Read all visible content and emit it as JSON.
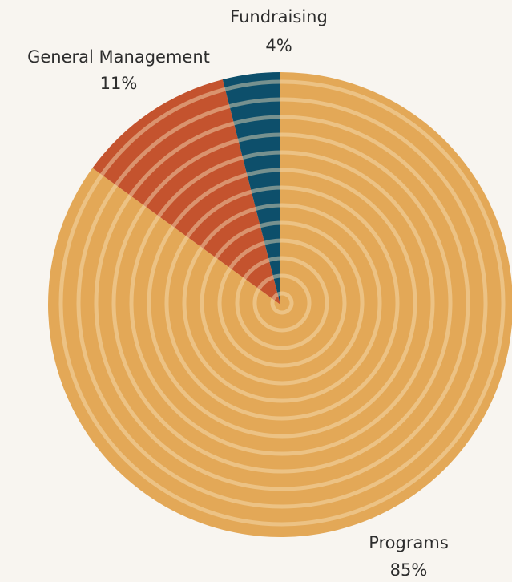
{
  "chart_data": {
    "type": "pie",
    "categories": [
      "Programs",
      "General Management",
      "Fundraising"
    ],
    "values": [
      85,
      11,
      4
    ],
    "value_labels": [
      "85%",
      "11%",
      "4%"
    ],
    "colors": [
      "#e3a857",
      "#c4532e",
      "#0d4f6b"
    ]
  }
}
